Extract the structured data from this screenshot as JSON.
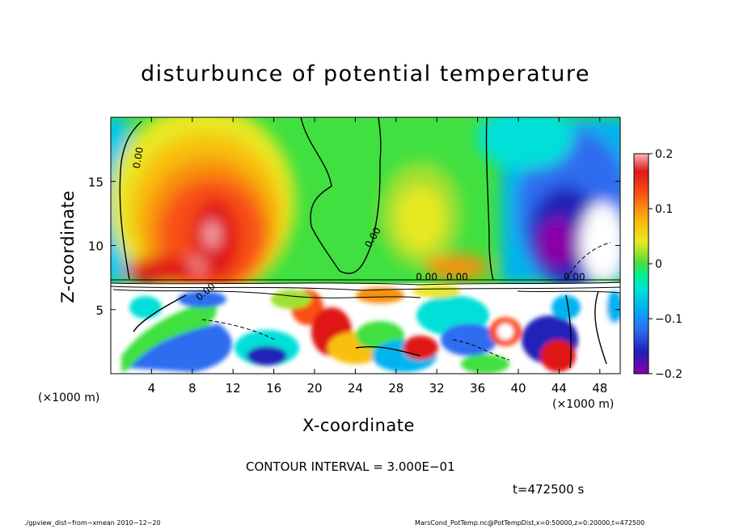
{
  "chart_data": {
    "type": "heatmap",
    "title": "disturbunce of potential temperature",
    "xlabel": "X-coordinate",
    "ylabel": "Z-coordinate",
    "x_unit_label": "(×1000 m)",
    "x_ticks": [
      4,
      8,
      12,
      16,
      20,
      24,
      28,
      32,
      36,
      40,
      44,
      48
    ],
    "xlim": [
      0,
      50
    ],
    "y_ticks": [
      5,
      10,
      15
    ],
    "ylim": [
      0,
      20
    ],
    "colorbar": {
      "ticks": [
        0.2,
        0.1,
        0,
        -0.1,
        -0.2
      ],
      "tick_labels": [
        "0.2",
        "0.1",
        "0",
        "−0.1",
        "−0.2"
      ],
      "range": [
        -0.2,
        0.2
      ]
    },
    "contour_labels": [
      "0.00",
      "0.00",
      "0.00",
      "0.00",
      "0.00",
      "0.00"
    ],
    "contour_interval": "CONTOUR INTERVAL = 3.000E−01",
    "grid": false
  },
  "time_label": "t=472500 s",
  "footer": {
    "left": "./gpview_dist−from−xmean   2010−12−20",
    "right": "MarsCond_PotTemp.nc@PotTempDist,x=0:50000,z=0:20000,t=472500"
  },
  "colors": {
    "palette": [
      "#8b00a8",
      "#2020b8",
      "#2f6cf0",
      "#00b4f0",
      "#00e0d8",
      "#00f0a0",
      "#40e040",
      "#a0e030",
      "#e8e820",
      "#f8c010",
      "#f89010",
      "#f85018",
      "#e01818",
      "#f8b8c0"
    ]
  }
}
